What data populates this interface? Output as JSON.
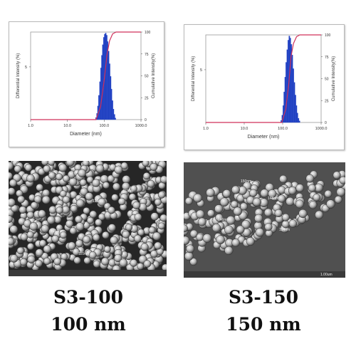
{
  "chart_data": [
    {
      "type": "bar",
      "xscale": "log",
      "xlim": [
        1,
        1000
      ],
      "xticks": [
        "1.0",
        "10.0",
        "100.0",
        "1000.0"
      ],
      "xlabel": "Diameter  (nm)",
      "ylabel_left": "Differential Intensity (%)",
      "ylabel_right": "Cumulative Intensity(%)",
      "left_ticks": [
        {
          "label": "5",
          "value": 5
        }
      ],
      "right_ticks": [
        {
          "label": "0",
          "value": 0
        },
        {
          "label": "25",
          "value": 25
        },
        {
          "label": "50",
          "value": 50
        },
        {
          "label": "75",
          "value": 75
        },
        {
          "label": "100",
          "value": 100
        }
      ],
      "ylim_left": [
        0,
        8.3
      ],
      "peak_diameter": 110,
      "histogram": {
        "x": [
          60,
          64,
          68,
          72,
          77,
          82,
          87,
          92,
          98,
          104,
          110,
          117,
          124,
          132,
          140,
          149,
          158,
          168,
          178,
          190,
          200
        ],
        "values": [
          0.2,
          0.6,
          1.3,
          2.3,
          3.6,
          4.9,
          6.1,
          7.1,
          7.8,
          8.1,
          8.2,
          8.0,
          7.4,
          6.5,
          5.3,
          4.1,
          2.9,
          1.8,
          1.0,
          0.5,
          0.15
        ]
      },
      "cumulative": {
        "x": [
          1,
          60,
          80,
          100,
          120,
          140,
          170,
          210,
          1000
        ],
        "values": [
          0,
          0,
          15,
          45,
          75,
          90,
          98,
          100,
          100
        ]
      },
      "colors": {
        "bars": "#1f3fbf",
        "cumulative": "#d0305a"
      }
    },
    {
      "type": "bar",
      "xscale": "log",
      "xlim": [
        1,
        1000
      ],
      "xticks": [
        "1.0",
        "10.0",
        "100.0",
        "1000.0"
      ],
      "xlabel": "Diameter  (nm)",
      "ylabel_left": "Differential Intensity (%)",
      "ylabel_right": "Cumulative Intensity(%)",
      "left_ticks": [
        {
          "label": "5",
          "value": 5
        }
      ],
      "right_ticks": [
        {
          "label": "0",
          "value": 0
        },
        {
          "label": "25",
          "value": 25
        },
        {
          "label": "50",
          "value": 50
        },
        {
          "label": "75",
          "value": 75
        },
        {
          "label": "100",
          "value": 100
        }
      ],
      "ylim_left": [
        0,
        8.3
      ],
      "peak_diameter": 150,
      "histogram": {
        "x": [
          92,
          98,
          104,
          110,
          117,
          124,
          132,
          140,
          149,
          158,
          168,
          178,
          190,
          202,
          215,
          228,
          242,
          258,
          274
        ],
        "values": [
          0.2,
          0.7,
          1.6,
          2.9,
          4.3,
          5.7,
          6.9,
          7.8,
          8.2,
          8.0,
          7.4,
          6.4,
          5.1,
          3.8,
          2.6,
          1.6,
          0.9,
          0.4,
          0.15
        ]
      },
      "cumulative": {
        "x": [
          1,
          95,
          120,
          145,
          165,
          190,
          230,
          280,
          1000
        ],
        "values": [
          0,
          0,
          15,
          45,
          75,
          90,
          98,
          100,
          100
        ]
      },
      "colors": {
        "bars": "#1f3fbf",
        "cumulative": "#d0305a"
      }
    }
  ],
  "images": {
    "left": {
      "annotations": [
        "120nm",
        "113nm",
        "117nm",
        "110nm"
      ]
    },
    "right": {
      "annotations": [
        "150nm",
        "148nm",
        "146nm",
        "154nm",
        "1.00um"
      ]
    }
  },
  "captions": {
    "left": {
      "name": "S3-100",
      "size": "100 nm"
    },
    "right": {
      "name": "S3-150",
      "size": "150 nm"
    }
  }
}
